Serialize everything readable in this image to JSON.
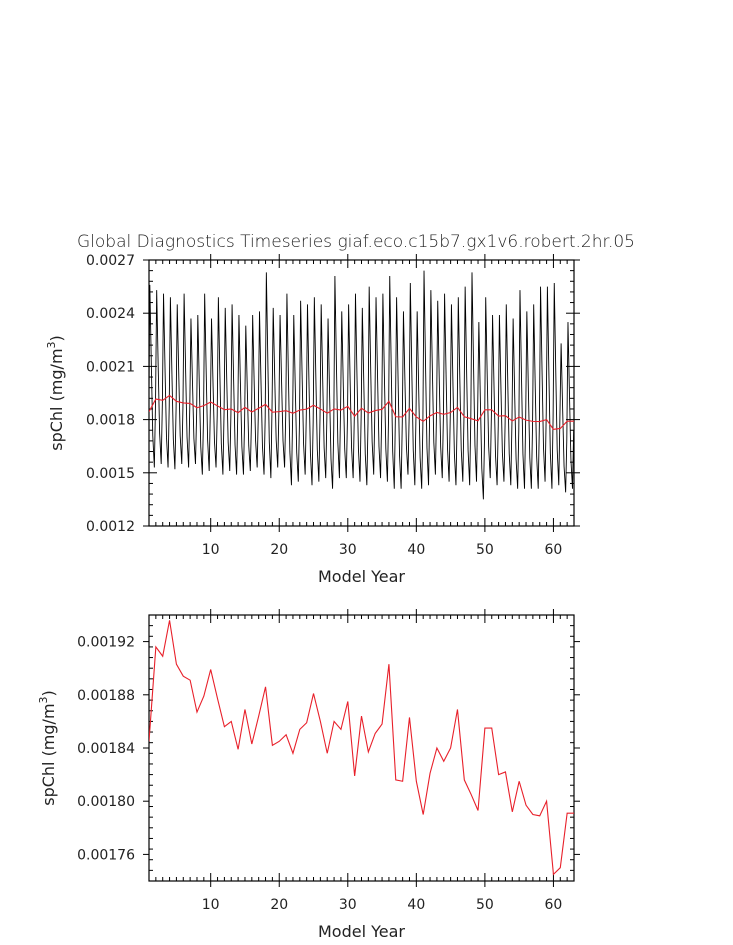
{
  "figure_title": "Global Diagnostics Timeseries giaf.eco.c15b7.gx1v6.robert.2hr.05",
  "chart_data": [
    {
      "type": "line",
      "name": "monthly-and-annual",
      "xlabel": "Model Year",
      "ylabel_main": "spChl (mg/m",
      "ylabel_sup": "3",
      "ylabel_close": ")",
      "xlim": [
        1,
        63
      ],
      "ylim": [
        0.0012,
        0.0027
      ],
      "xticks": [
        10,
        20,
        30,
        40,
        50,
        60
      ],
      "xtick_labels": [
        "10",
        "20",
        "30",
        "40",
        "50",
        "60"
      ],
      "yticks": [
        0.0012,
        0.0015,
        0.0018,
        0.0021,
        0.0024,
        0.0027
      ],
      "ytick_labels": [
        "0.0012",
        "0.0015",
        "0.0018",
        "0.0021",
        "0.0024",
        "0.0027"
      ],
      "series": [
        {
          "color": "#000000",
          "kind": "seasonal",
          "peaks": [
            0.00256,
            0.00253,
            0.00251,
            0.00249,
            0.00245,
            0.00251,
            0.00237,
            0.00239,
            0.00251,
            0.00237,
            0.00249,
            0.00243,
            0.00245,
            0.00239,
            0.00233,
            0.00239,
            0.00241,
            0.00263,
            0.00243,
            0.00239,
            0.00251,
            0.00239,
            0.00247,
            0.00245,
            0.00249,
            0.00245,
            0.00237,
            0.00261,
            0.00241,
            0.00245,
            0.00251,
            0.00243,
            0.00255,
            0.00249,
            0.00251,
            0.00261,
            0.00249,
            0.00241,
            0.00257,
            0.00241,
            0.00264,
            0.00253,
            0.00247,
            0.00251,
            0.00245,
            0.00249,
            0.00255,
            0.00263,
            0.00235,
            0.00249,
            0.00239,
            0.00239,
            0.00245,
            0.00237,
            0.00253,
            0.00241,
            0.00245,
            0.00255,
            0.00255,
            0.00257,
            0.00223,
            0.00235
          ],
          "troughs": [
            0.00153,
            0.00155,
            0.00153,
            0.00152,
            0.00155,
            0.00153,
            0.00155,
            0.00149,
            0.00151,
            0.00153,
            0.00149,
            0.00151,
            0.00149,
            0.00149,
            0.00151,
            0.00153,
            0.00149,
            0.00147,
            0.00153,
            0.00153,
            0.00143,
            0.00145,
            0.00149,
            0.00143,
            0.00145,
            0.00147,
            0.00141,
            0.00147,
            0.00147,
            0.00147,
            0.00145,
            0.00143,
            0.00149,
            0.00147,
            0.00145,
            0.00141,
            0.00141,
            0.00149,
            0.00143,
            0.00141,
            0.00143,
            0.00149,
            0.00147,
            0.00145,
            0.00143,
            0.00145,
            0.00143,
            0.00145,
            0.00135,
            0.00147,
            0.00143,
            0.00145,
            0.00143,
            0.00141,
            0.00141,
            0.00141,
            0.00141,
            0.00145,
            0.00141,
            0.00143,
            0.00139,
            0.00141
          ]
        },
        {
          "color": "#e8202a",
          "kind": "annual-mean",
          "ref": "chart_data.1.series.0.y"
        }
      ]
    },
    {
      "type": "line",
      "name": "annual-mean",
      "xlabel": "Model Year",
      "ylabel_main": "spChl (mg/m",
      "ylabel_sup": "3",
      "ylabel_close": ")",
      "xlim": [
        1,
        63
      ],
      "ylim": [
        0.00174,
        0.00194
      ],
      "xticks": [
        10,
        20,
        30,
        40,
        50,
        60
      ],
      "xtick_labels": [
        "10",
        "20",
        "30",
        "40",
        "50",
        "60"
      ],
      "yticks": [
        0.00176,
        0.0018,
        0.00184,
        0.00188,
        0.00192
      ],
      "ytick_labels": [
        "0.00176",
        "0.00180",
        "0.00184",
        "0.00188",
        "0.00192"
      ],
      "series": [
        {
          "color": "#e8202a",
          "x": [
            1,
            2,
            3,
            4,
            5,
            6,
            7,
            8,
            9,
            10,
            11,
            12,
            13,
            14,
            15,
            16,
            17,
            18,
            19,
            20,
            21,
            22,
            23,
            24,
            25,
            26,
            27,
            28,
            29,
            30,
            31,
            32,
            33,
            34,
            35,
            36,
            37,
            38,
            39,
            40,
            41,
            42,
            43,
            44,
            45,
            46,
            47,
            48,
            49,
            50,
            51,
            52,
            53,
            54,
            55,
            56,
            57,
            58,
            59,
            60,
            61,
            62,
            63
          ],
          "y": [
            0.001845,
            0.001916,
            0.001909,
            0.001936,
            0.001903,
            0.001894,
            0.001891,
            0.001867,
            0.001879,
            0.001899,
            0.001877,
            0.001856,
            0.00186,
            0.001839,
            0.001869,
            0.001843,
            0.001864,
            0.001886,
            0.001842,
            0.001845,
            0.00185,
            0.001836,
            0.001854,
            0.001859,
            0.001881,
            0.00186,
            0.001836,
            0.00186,
            0.001854,
            0.001875,
            0.001819,
            0.001864,
            0.001837,
            0.001851,
            0.001858,
            0.001903,
            0.001816,
            0.001815,
            0.001863,
            0.001815,
            0.00179,
            0.001821,
            0.00184,
            0.00183,
            0.00184,
            0.001869,
            0.001816,
            0.001805,
            0.001793,
            0.001855,
            0.001855,
            0.00182,
            0.001822,
            0.001792,
            0.001815,
            0.001797,
            0.00179,
            0.001789,
            0.0018,
            0.001745,
            0.00175,
            0.001791,
            0.001791
          ]
        }
      ]
    }
  ]
}
